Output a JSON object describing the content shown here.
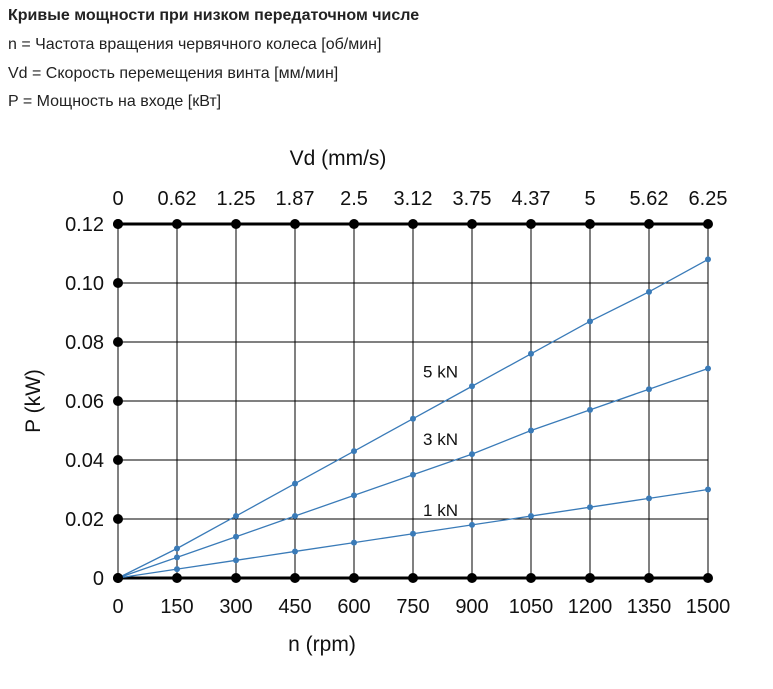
{
  "header": {
    "title": "Кривые мощности при низком передаточном числе",
    "line_n": "n = Частота вращения червячного колеса [об/мин]",
    "line_vd": "Vd = Скорость перемещения винта [мм/мин]",
    "line_p": "P = Мощность на входе [кВт]"
  },
  "chart_data": {
    "type": "line",
    "xlabel": "n (rpm)",
    "x2label": "Vd (mm/s)",
    "ylabel": "P (kW)",
    "xlim": [
      0,
      1500
    ],
    "ylim": [
      0,
      0.12
    ],
    "x_ticks": [
      "0",
      "150",
      "300",
      "450",
      "600",
      "750",
      "900",
      "1050",
      "1200",
      "1350",
      "1500"
    ],
    "x2_ticks": [
      "0",
      "0.62",
      "1.25",
      "1.87",
      "2.5",
      "3.12",
      "3.75",
      "4.37",
      "5",
      "5.62",
      "6.25"
    ],
    "y_ticks": [
      "0",
      "0.02",
      "0.04",
      "0.06",
      "0.08",
      "0.10",
      "0.12"
    ],
    "grid": true,
    "colors": {
      "series": "#3a7bb8",
      "grid": "#000000"
    },
    "x": [
      0,
      150,
      300,
      450,
      600,
      750,
      900,
      1050,
      1200,
      1350,
      1500
    ],
    "series": [
      {
        "name": "5 kN",
        "values": [
          0,
          0.01,
          0.021,
          0.032,
          0.043,
          0.054,
          0.065,
          0.076,
          0.087,
          0.097,
          0.108
        ]
      },
      {
        "name": "3 kN",
        "values": [
          0,
          0.007,
          0.014,
          0.021,
          0.028,
          0.035,
          0.042,
          0.05,
          0.057,
          0.064,
          0.071
        ]
      },
      {
        "name": "1 kN",
        "values": [
          0,
          0.003,
          0.006,
          0.009,
          0.012,
          0.015,
          0.018,
          0.021,
          0.024,
          0.027,
          0.03
        ]
      }
    ]
  }
}
